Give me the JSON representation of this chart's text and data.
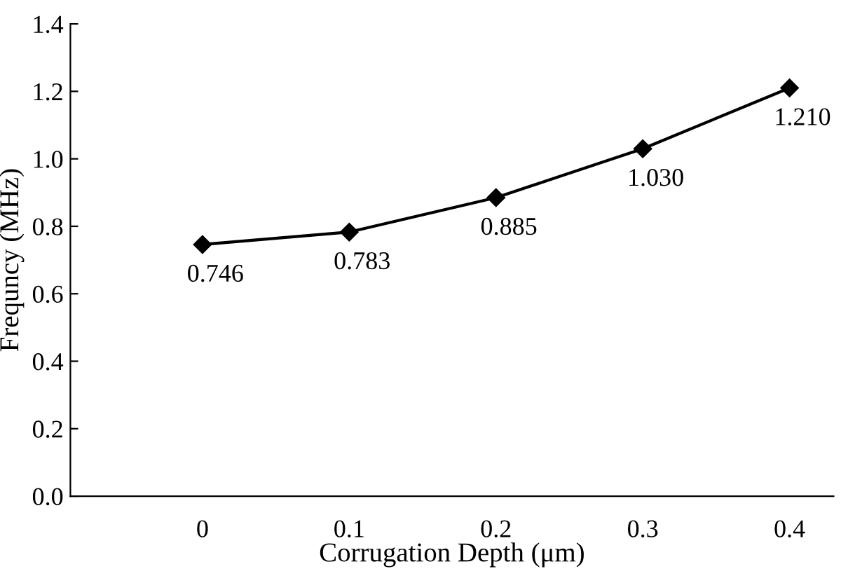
{
  "chart_data": {
    "type": "line",
    "xlabel": "Corrugation Depth (μm)",
    "ylabel": "Frequncy (MHz)",
    "categories": [
      "0",
      "0.1",
      "0.2",
      "0.3",
      "0.4"
    ],
    "series": [
      {
        "color": "#000000",
        "values": [
          0.746,
          0.783,
          0.885,
          1.03,
          1.21
        ],
        "value_labels": [
          "0.746",
          "0.783",
          "0.885",
          "1.030",
          "1.210"
        ]
      }
    ],
    "ylim": [
      0,
      1.4
    ],
    "yticks": [
      {
        "value": 0,
        "label": "0.0"
      },
      {
        "value": 0.2,
        "label": "0.2"
      },
      {
        "value": 0.4,
        "label": "0.4"
      },
      {
        "value": 0.6,
        "label": "0.6"
      },
      {
        "value": 0.8,
        "label": "0.8"
      },
      {
        "value": 1.0,
        "label": "1.0"
      },
      {
        "value": 1.2,
        "label": "1.2"
      },
      {
        "value": 1.4,
        "label": "1.4"
      }
    ],
    "marker": "diamond",
    "line_style": "solid",
    "grid": false,
    "legend": false
  }
}
